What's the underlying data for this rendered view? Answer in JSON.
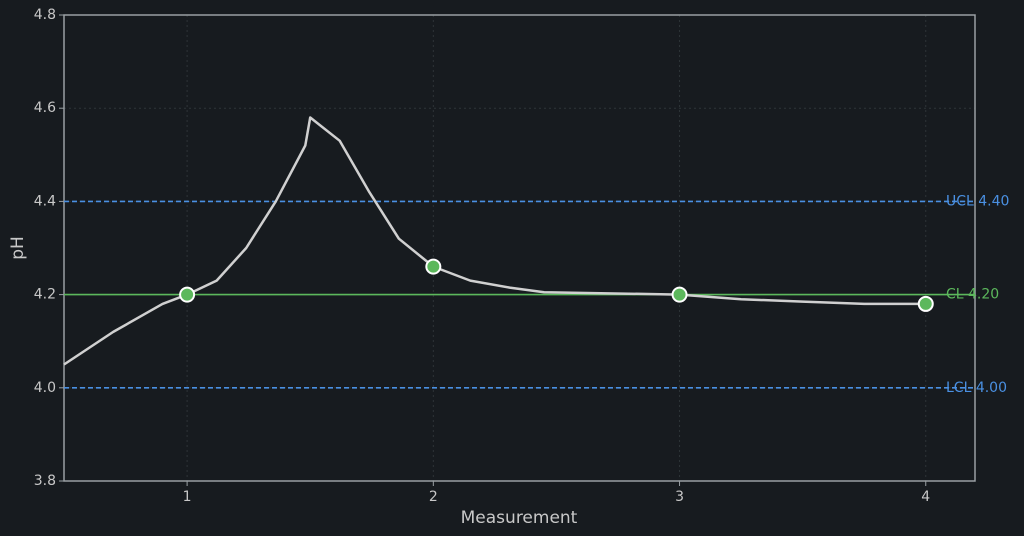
{
  "chart_data": {
    "type": "control",
    "xlabel": "Measurement",
    "ylabel": "pH",
    "xlim": [
      0.5,
      4.2
    ],
    "ylim": [
      3.8,
      4.8
    ],
    "xticks": [
      1,
      2,
      3,
      4
    ],
    "yticks": [
      3.8,
      {
        "value": 4,
        "label": "4.0"
      },
      4.2,
      4.4,
      4.6,
      4.8
    ],
    "grid": true,
    "series": [
      {
        "color": "#d0d0d0",
        "x": [
          0.5,
          0.7,
          0.9,
          1.0,
          1.12,
          1.24,
          1.36,
          1.48,
          1.5,
          1.62,
          1.74,
          1.86,
          2.0,
          2.15,
          2.31,
          2.45,
          2.68,
          3.0,
          3.25,
          3.5,
          3.75,
          4.0
        ],
        "values": [
          4.05,
          4.12,
          4.18,
          4.2,
          4.23,
          4.3,
          4.4,
          4.52,
          4.58,
          4.53,
          4.42,
          4.32,
          4.26,
          4.23,
          4.215,
          4.205,
          4.203,
          4.2,
          4.19,
          4.185,
          4.18,
          4.18
        ]
      },
      {
        "color": "#5cb85c",
        "style": "markers",
        "x": [
          1,
          2,
          3,
          4
        ],
        "values": [
          4.2,
          4.26,
          4.2,
          4.18
        ]
      }
    ],
    "control_lines": [
      {
        "label": "UCL 4.40",
        "value": 4.4,
        "color": "#4a90e2",
        "dashed": true
      },
      {
        "label": "CL 4.20",
        "value": 4.2,
        "color": "#5cb85c",
        "dashed": false
      },
      {
        "label": "LCL 4.00",
        "value": 4,
        "color": "#4a90e2",
        "dashed": true
      }
    ]
  }
}
